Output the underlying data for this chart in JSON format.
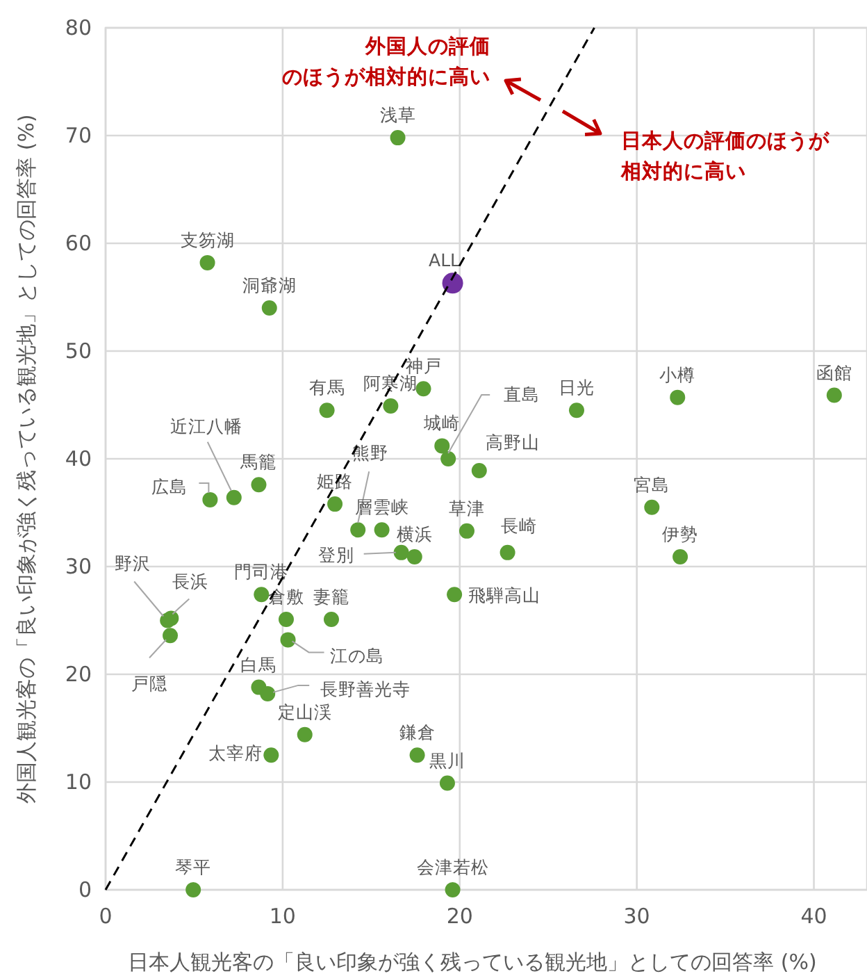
{
  "chart_data": {
    "type": "scatter",
    "xlabel": "日本人観光客の「良い印象が強く残っている観光地」としての回答率 (%)",
    "ylabel": "外国人観光客の「良い印象が強く残っている観光地」としての回答率 (%)",
    "annotations": [
      "外国人の評価のほうが相対的に高い",
      "日本人の評価のほうが相対的に高い"
    ],
    "xlim": [
      0,
      43
    ],
    "ylim": [
      0,
      80
    ],
    "xticks": [
      0,
      10,
      20,
      30,
      40
    ],
    "yticks": [
      0,
      10,
      20,
      30,
      40,
      50,
      60,
      70,
      80
    ],
    "grid": true,
    "marker": "circle",
    "series": [
      {
        "color": "#5a9e34",
        "x": [
          16.5,
          5.75,
          9.25,
          12.5,
          16.1,
          17.95,
          19.0,
          19.35,
          26.6,
          32.3,
          41.15,
          21.1,
          30.85,
          20.4,
          22.7,
          32.45,
          19.7,
          19.3,
          19.6,
          17.6,
          5.9,
          7.25,
          8.65,
          12.95,
          14.25,
          15.6,
          16.7,
          17.45,
          8.8,
          3.5,
          3.7,
          3.65,
          10.2,
          12.75,
          10.3,
          8.65,
          9.15,
          11.25,
          9.35,
          4.95
        ],
        "values": [
          69.8,
          58.2,
          54.0,
          44.5,
          44.9,
          46.5,
          41.2,
          40.0,
          44.5,
          45.7,
          45.9,
          38.9,
          35.5,
          33.3,
          31.3,
          30.9,
          27.4,
          9.9,
          0,
          12.5,
          36.2,
          36.4,
          37.6,
          35.8,
          33.4,
          33.4,
          31.3,
          30.9,
          27.4,
          25.0,
          25.2,
          23.6,
          25.1,
          25.1,
          23.2,
          18.8,
          18.2,
          14.4,
          12.5,
          0
        ],
        "value_labels": [
          "浅草",
          "支笏湖",
          "洞爺湖",
          "有馬",
          "阿寒湖",
          "神戸",
          "城崎",
          "直島",
          "日光",
          "小樽",
          "函館",
          "高野山",
          "宮島",
          "草津",
          "長崎",
          "伊勢",
          "飛騨高山",
          "黒川",
          "会津若松",
          "鎌倉",
          "広島",
          "近江八幡",
          "馬籠",
          "姫路",
          "熊野",
          "層雲峡",
          "登別",
          "横浜",
          "門司港",
          "野沢",
          "長浜",
          "戸隠",
          "倉敷",
          "妻籠",
          "江の島",
          "白馬",
          "長野善光寺",
          "定山渓",
          "太宰府",
          "琴平"
        ]
      },
      {
        "color": "#7030a0",
        "x": [
          19.6
        ],
        "values": [
          56.3
        ],
        "value_labels": [
          "ALL"
        ]
      },
      {
        "type": "line",
        "color": "#000000",
        "line_style": "dashed",
        "marker": "none",
        "x": [
          0,
          27.6
        ],
        "values": [
          0,
          80
        ]
      }
    ]
  }
}
